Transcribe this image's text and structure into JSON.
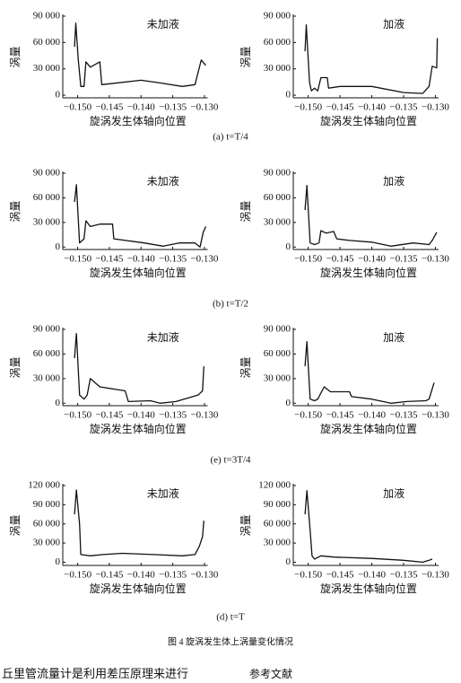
{
  "chart_data": [
    {
      "type": "line",
      "annotation": "未加液",
      "ylabel": "涡量",
      "xlabel": "旋涡发生体轴向位置",
      "color": "#111111",
      "x": [
        -0.1505,
        -0.1503,
        -0.1499,
        -0.1495,
        -0.149,
        -0.1487,
        -0.148,
        -0.1465,
        -0.1462,
        -0.14,
        -0.137,
        -0.1335,
        -0.1315,
        -0.1305,
        -0.1298
      ],
      "values": [
        55000,
        82000,
        40000,
        10000,
        10000,
        38000,
        32000,
        38000,
        12000,
        17000,
        14000,
        10000,
        12000,
        40000,
        34000
      ],
      "xlim": [
        -0.1515,
        -0.1295
      ],
      "ylim": [
        -3000,
        90000
      ],
      "xticks": [
        {
          "value": -0.15,
          "label": "−0.150"
        },
        {
          "value": -0.145,
          "label": "−0.145"
        },
        {
          "value": -0.14,
          "label": "−0.140"
        },
        {
          "value": -0.135,
          "label": "−0.135"
        },
        {
          "value": -0.13,
          "label": "−0.130"
        }
      ],
      "yticks": [
        0,
        {
          "value": 30000,
          "label": "30 000"
        },
        {
          "value": 60000,
          "label": "60 000"
        },
        {
          "value": 90000,
          "label": "90 000"
        }
      ]
    },
    {
      "type": "line",
      "annotation": "加液",
      "ylabel": "涡量",
      "xlabel": "旋涡发生体轴向位置",
      "color": "#111111",
      "x": [
        -0.1505,
        -0.1503,
        -0.1498,
        -0.1495,
        -0.149,
        -0.1485,
        -0.148,
        -0.147,
        -0.1468,
        -0.145,
        -0.14,
        -0.135,
        -0.132,
        -0.131,
        -0.1305,
        -0.1298,
        -0.1297
      ],
      "values": [
        50000,
        80000,
        15000,
        5000,
        8000,
        5000,
        20000,
        20000,
        8000,
        10000,
        10000,
        3000,
        2000,
        10000,
        33000,
        31000,
        65000
      ],
      "xlim": [
        -0.1515,
        -0.1295
      ],
      "ylim": [
        -3000,
        90000
      ],
      "xticks": [
        {
          "value": -0.15,
          "label": "−0.150"
        },
        {
          "value": -0.145,
          "label": "−0.145"
        },
        {
          "value": -0.14,
          "label": "−0.140"
        },
        {
          "value": -0.135,
          "label": "−0.135"
        },
        {
          "value": -0.13,
          "label": "−0.130"
        }
      ],
      "yticks": [
        0,
        {
          "value": 30000,
          "label": "30 000"
        },
        {
          "value": 60000,
          "label": "60 000"
        },
        {
          "value": 90000,
          "label": "90 000"
        }
      ]
    },
    {
      "type": "line",
      "annotation": "未加液",
      "ylabel": "涡量",
      "xlabel": "旋涡发生体轴向位置",
      "color": "#111111",
      "x": [
        -0.1505,
        -0.1502,
        -0.1497,
        -0.149,
        -0.1487,
        -0.148,
        -0.1465,
        -0.1445,
        -0.1443,
        -0.1395,
        -0.1365,
        -0.134,
        -0.1315,
        -0.1307,
        -0.1302,
        -0.1298
      ],
      "values": [
        55000,
        76000,
        5000,
        10000,
        32000,
        25000,
        28000,
        28000,
        10000,
        5000,
        1000,
        5000,
        5000,
        0,
        18000,
        25000
      ],
      "xlim": [
        -0.1515,
        -0.1295
      ],
      "ylim": [
        -3000,
        90000
      ],
      "xticks": [
        {
          "value": -0.15,
          "label": "−0.150"
        },
        {
          "value": -0.145,
          "label": "−0.145"
        },
        {
          "value": -0.14,
          "label": "−0.140"
        },
        {
          "value": -0.135,
          "label": "−0.135"
        },
        {
          "value": -0.13,
          "label": "−0.130"
        }
      ],
      "yticks": [
        0,
        {
          "value": 30000,
          "label": "30 000"
        },
        {
          "value": 60000,
          "label": "60 000"
        },
        {
          "value": 90000,
          "label": "90 000"
        }
      ]
    },
    {
      "type": "line",
      "annotation": "加液",
      "ylabel": "涡量",
      "xlabel": "旋涡发生体轴向位置",
      "color": "#111111",
      "x": [
        -0.1505,
        -0.1502,
        -0.1497,
        -0.149,
        -0.1483,
        -0.148,
        -0.1472,
        -0.146,
        -0.1455,
        -0.1435,
        -0.14,
        -0.137,
        -0.1335,
        -0.131,
        -0.1305,
        -0.1298
      ],
      "values": [
        45000,
        75000,
        5000,
        3000,
        5000,
        20000,
        17000,
        19000,
        10000,
        8000,
        6000,
        1000,
        5000,
        3000,
        8000,
        18000
      ],
      "xlim": [
        -0.1515,
        -0.1295
      ],
      "ylim": [
        -3000,
        90000
      ],
      "xticks": [
        {
          "value": -0.15,
          "label": "−0.150"
        },
        {
          "value": -0.145,
          "label": "−0.145"
        },
        {
          "value": -0.14,
          "label": "−0.140"
        },
        {
          "value": -0.135,
          "label": "−0.135"
        },
        {
          "value": -0.13,
          "label": "−0.130"
        }
      ],
      "yticks": [
        0,
        {
          "value": 30000,
          "label": "30 000"
        },
        {
          "value": 60000,
          "label": "60 000"
        },
        {
          "value": 90000,
          "label": "90 000"
        }
      ]
    },
    {
      "type": "line",
      "annotation": "未加液",
      "ylabel": "涡量",
      "xlabel": "旋涡发生体轴向位置",
      "color": "#111111",
      "x": [
        -0.1505,
        -0.1502,
        -0.1497,
        -0.149,
        -0.1485,
        -0.148,
        -0.1465,
        -0.1425,
        -0.142,
        -0.1385,
        -0.137,
        -0.1345,
        -0.131,
        -0.1303,
        -0.1301
      ],
      "values": [
        55000,
        85000,
        10000,
        5000,
        10000,
        30000,
        20000,
        15000,
        2000,
        3000,
        0,
        2000,
        10000,
        15000,
        45000
      ],
      "xlim": [
        -0.1515,
        -0.1295
      ],
      "ylim": [
        -3000,
        90000
      ],
      "xticks": [
        {
          "value": -0.15,
          "label": "−0.150"
        },
        {
          "value": -0.145,
          "label": "−0.145"
        },
        {
          "value": -0.14,
          "label": "−0.140"
        },
        {
          "value": -0.135,
          "label": "−0.135"
        },
        {
          "value": -0.13,
          "label": "−0.130"
        }
      ],
      "yticks": [
        0,
        {
          "value": 30000,
          "label": "30 000"
        },
        {
          "value": 60000,
          "label": "60 000"
        },
        {
          "value": 90000,
          "label": "90 000"
        }
      ]
    },
    {
      "type": "line",
      "annotation": "加液",
      "ylabel": "涡量",
      "xlabel": "旋涡发生体轴向位置",
      "color": "#111111",
      "x": [
        -0.1505,
        -0.1502,
        -0.1497,
        -0.149,
        -0.1485,
        -0.1475,
        -0.1465,
        -0.1435,
        -0.1432,
        -0.14,
        -0.137,
        -0.1345,
        -0.1315,
        -0.131,
        -0.1302
      ],
      "values": [
        45000,
        75000,
        5000,
        3000,
        5000,
        20000,
        14000,
        14000,
        8000,
        5000,
        0,
        2000,
        3000,
        5000,
        25000
      ],
      "xlim": [
        -0.1515,
        -0.1295
      ],
      "ylim": [
        -3000,
        90000
      ],
      "xticks": [
        {
          "value": -0.15,
          "label": "−0.150"
        },
        {
          "value": -0.145,
          "label": "−0.145"
        },
        {
          "value": -0.14,
          "label": "−0.140"
        },
        {
          "value": -0.135,
          "label": "−0.135"
        },
        {
          "value": -0.13,
          "label": "−0.130"
        }
      ],
      "yticks": [
        0,
        {
          "value": 30000,
          "label": "30 000"
        },
        {
          "value": 60000,
          "label": "60 000"
        },
        {
          "value": 90000,
          "label": "90 000"
        }
      ]
    },
    {
      "type": "line",
      "annotation": "未加液",
      "ylabel": "涡量",
      "xlabel": "旋涡发生体轴向位置",
      "color": "#111111",
      "x": [
        -0.1505,
        -0.1502,
        -0.1497,
        -0.1495,
        -0.148,
        -0.146,
        -0.143,
        -0.138,
        -0.1335,
        -0.1315,
        -0.1308,
        -0.1303,
        -0.1301
      ],
      "values": [
        75000,
        113000,
        60000,
        12000,
        10000,
        12000,
        14000,
        12000,
        10000,
        12000,
        25000,
        40000,
        65000
      ],
      "xlim": [
        -0.1515,
        -0.1295
      ],
      "ylim": [
        -5000,
        120000
      ],
      "xticks": [
        {
          "value": -0.15,
          "label": "−0.150"
        },
        {
          "value": -0.145,
          "label": "−0.145"
        },
        {
          "value": -0.14,
          "label": "−0.140"
        },
        {
          "value": -0.135,
          "label": "−0.135"
        },
        {
          "value": -0.13,
          "label": "−0.130"
        }
      ],
      "yticks": [
        0,
        {
          "value": 30000,
          "label": "30 000"
        },
        {
          "value": 60000,
          "label": "60 000"
        },
        {
          "value": 90000,
          "label": "90 000"
        },
        {
          "value": 120000,
          "label": "120 000"
        }
      ]
    },
    {
      "type": "line",
      "annotation": "加液",
      "ylabel": "涡量",
      "xlabel": "旋涡发生体轴向位置",
      "color": "#111111",
      "x": [
        -0.1505,
        -0.1502,
        -0.1497,
        -0.1494,
        -0.149,
        -0.148,
        -0.146,
        -0.14,
        -0.135,
        -0.132,
        -0.131,
        -0.1305
      ],
      "values": [
        75000,
        112000,
        50000,
        10000,
        5000,
        10000,
        8000,
        6000,
        3000,
        0,
        3000,
        5000
      ],
      "xlim": [
        -0.1515,
        -0.1295
      ],
      "ylim": [
        -5000,
        120000
      ],
      "xticks": [
        {
          "value": -0.15,
          "label": "−0.150"
        },
        {
          "value": -0.145,
          "label": "−0.145"
        },
        {
          "value": -0.14,
          "label": "−0.140"
        },
        {
          "value": -0.135,
          "label": "−0.135"
        },
        {
          "value": -0.13,
          "label": "−0.130"
        }
      ],
      "yticks": [
        0,
        {
          "value": 30000,
          "label": "30 000"
        },
        {
          "value": 60000,
          "label": "60 000"
        },
        {
          "value": 90000,
          "label": "90 000"
        },
        {
          "value": 120000,
          "label": "120 000"
        }
      ]
    }
  ],
  "subcaptions": [
    "(a) t=T/4",
    "(b) t=T/2",
    "(e) t=3T/4",
    "(d) t=T"
  ],
  "figure_caption": "图 4  旋涡发生体上涡量变化情况",
  "body_text": {
    "left": "丘里管流量计是利用差压原理来进行",
    "right": "参考文献"
  }
}
